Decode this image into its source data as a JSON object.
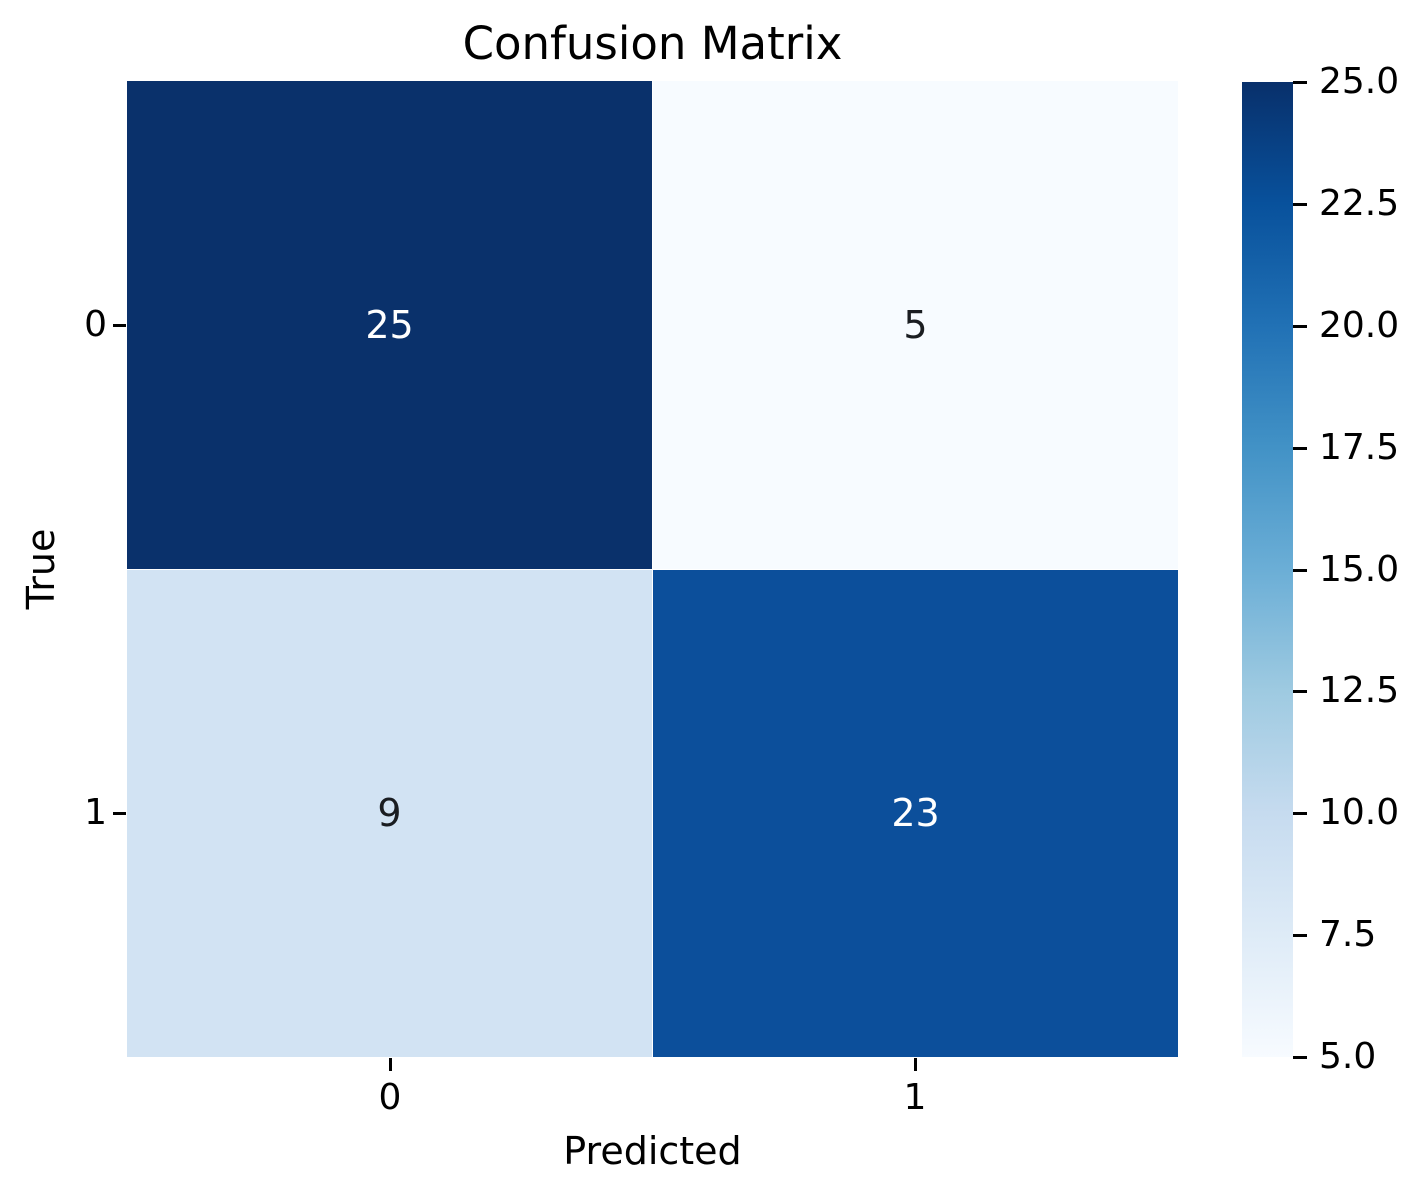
{
  "chart_data": {
    "type": "heatmap",
    "title": "Confusion Matrix",
    "xlabel": "Predicted",
    "ylabel": "True",
    "x_ticklabels": [
      "0",
      "1"
    ],
    "y_ticklabels": [
      "0",
      "1"
    ],
    "matrix": [
      [
        25,
        5
      ],
      [
        9,
        23
      ]
    ],
    "colormap": "Blues",
    "vmin": 5.0,
    "vmax": 25.0,
    "grid": false,
    "cells": [
      {
        "row": 0,
        "col": 0,
        "value": "25",
        "bg": "#0a316b",
        "text_color": "#ffffff"
      },
      {
        "row": 0,
        "col": 1,
        "value": "5",
        "bg": "#f7fbff",
        "text_color": "#1a1d21"
      },
      {
        "row": 1,
        "col": 0,
        "value": "9",
        "bg": "#d2e3f3",
        "text_color": "#1a1d21"
      },
      {
        "row": 1,
        "col": 1,
        "value": "23",
        "bg": "#0c4f9b",
        "text_color": "#ffffff"
      }
    ],
    "colorbar": {
      "position": "right",
      "tick_labels": [
        "25.0",
        "22.5",
        "20.0",
        "17.5",
        "15.0",
        "12.5",
        "10.0",
        "7.5",
        "5.0"
      ],
      "gradient_top_to_bottom": [
        "#08306b",
        "#08519c",
        "#2171b5",
        "#4292c6",
        "#6baed6",
        "#9ecae1",
        "#c6dbef",
        "#deebf7",
        "#f7fbff"
      ]
    }
  }
}
